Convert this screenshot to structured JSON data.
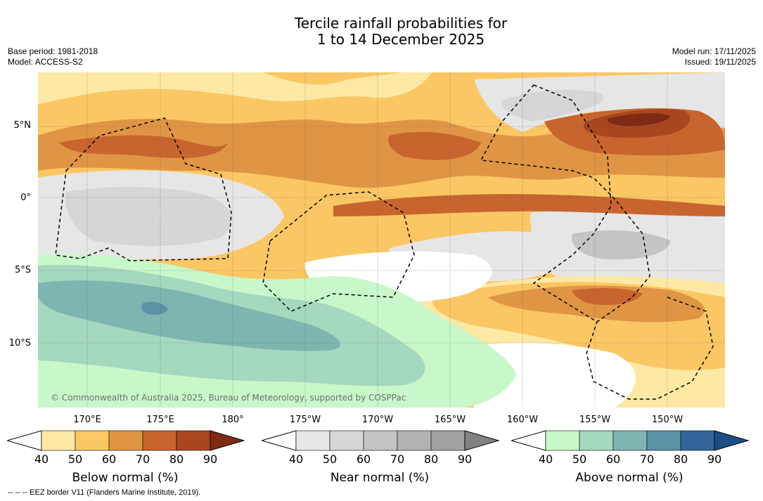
{
  "title": {
    "line1": "Tercile rainfall probabilities for",
    "line2": "1 to 14 December 2025"
  },
  "meta_left": {
    "base_period": "Base period: 1981-2018",
    "model": "Model: ACCESS-S2"
  },
  "meta_right": {
    "model_run": "Model run: 17/11/2025",
    "issued": "Issued: 19/11/2025"
  },
  "latitude_labels": [
    "5°N",
    "0°",
    "5°S",
    "10°S"
  ],
  "longitude_labels": [
    "170°E",
    "175°E",
    "180°",
    "175°W",
    "170°W",
    "165°W",
    "160°W",
    "155°W",
    "150°W"
  ],
  "copyright": "© Commonwealth of Australia 2025, Bureau of Meteorology, supported by COSPPac",
  "colorbars": [
    {
      "label": "Below normal (%)",
      "ticks": [
        "40",
        "50",
        "60",
        "70",
        "80",
        "90"
      ],
      "colors": [
        "#ffffff",
        "#fde9a4",
        "#fbc765",
        "#e09545",
        "#c8652f",
        "#a8461f",
        "#7f2a14"
      ]
    },
    {
      "label": "Near normal (%)",
      "ticks": [
        "40",
        "50",
        "60",
        "70",
        "80",
        "90"
      ],
      "colors": [
        "#ffffff",
        "#e6e6e6",
        "#d6d6d6",
        "#c4c4c4",
        "#b2b2b2",
        "#a1a1a1",
        "#828282"
      ]
    },
    {
      "label": "Above normal (%)",
      "ticks": [
        "40",
        "50",
        "60",
        "70",
        "80",
        "90"
      ],
      "colors": [
        "#ffffff",
        "#c8f7c9",
        "#a4d8bf",
        "#7fb5b0",
        "#5a92a6",
        "#33659a",
        "#1d4e85"
      ]
    }
  ],
  "footnote": "-- -- -- EEZ border V11 (Flanders Marine Institute, 2019)."
}
